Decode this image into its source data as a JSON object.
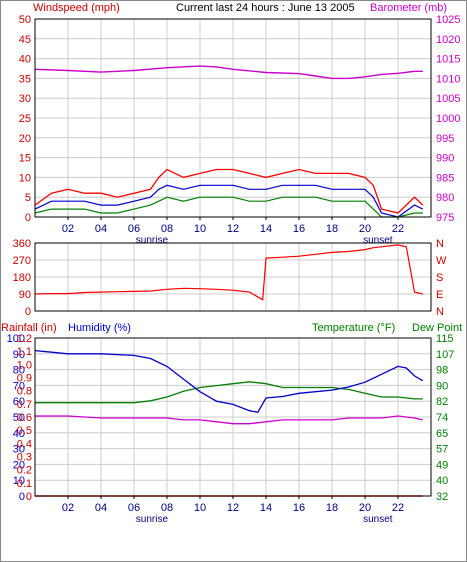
{
  "header": {
    "title": "Current last 24 hours : June 13 2005",
    "left_label": "Windspeed (mph)",
    "right_label": "Barometer (mb)"
  },
  "colors": {
    "red": "#ff0000",
    "blue": "#0000cc",
    "green": "#008000",
    "magenta": "#cc00cc",
    "grid": "#cccccc",
    "frame": "#000000"
  },
  "x_axis": {
    "tick_labels": [
      "02",
      "04",
      "06",
      "08",
      "10",
      "12",
      "14",
      "16",
      "18",
      "20",
      "22"
    ],
    "tick_hours": [
      2,
      4,
      6,
      8,
      10,
      12,
      14,
      16,
      18,
      20,
      22
    ],
    "sunrise_label": "sunrise",
    "sunset_label": "sunset",
    "sunrise_hour": 6.6,
    "sunset_hour": 20.9
  },
  "chart_data": [
    {
      "type": "line",
      "name": "wind-barometer",
      "ylabel_left": "Windspeed (mph)",
      "ylabel_right": "Barometer (mb)",
      "ylim_left": [
        0,
        50
      ],
      "ylim_right": [
        975,
        1025
      ],
      "yticks_left": [
        "0",
        "5",
        "10",
        "15",
        "20",
        "25",
        "30",
        "35",
        "40",
        "45",
        "50"
      ],
      "yticks_right": [
        "975",
        "980",
        "985",
        "990",
        "995",
        "1000",
        "1005",
        "1010",
        "1015",
        "1020",
        "1025"
      ],
      "grid": true,
      "barometer": {
        "x": [
          0,
          2,
          4,
          6,
          8,
          10,
          11,
          12,
          14,
          16,
          17,
          18,
          19,
          20,
          21,
          22,
          23,
          23.5
        ],
        "y": [
          1012.3,
          1012,
          1011.6,
          1012,
          1012.7,
          1013.1,
          1012.9,
          1012.3,
          1011.5,
          1011.2,
          1010.6,
          1010,
          1010,
          1010.4,
          1011,
          1011.3,
          1011.8,
          1011.8
        ]
      },
      "wind_gust": {
        "x": [
          0,
          1,
          2,
          3,
          4,
          5,
          6,
          7,
          7.5,
          8,
          9,
          10,
          11,
          12,
          13,
          14,
          15,
          16,
          17,
          18,
          19,
          20,
          20.5,
          21,
          22,
          23,
          23.5
        ],
        "y": [
          3,
          6,
          7,
          6,
          6,
          5,
          6,
          7,
          10,
          12,
          10,
          11,
          12,
          12,
          11,
          10,
          11,
          12,
          11,
          11,
          11,
          10,
          8,
          2,
          1,
          5,
          3
        ]
      },
      "wind_average": {
        "x": [
          0,
          1,
          2,
          3,
          4,
          5,
          6,
          7,
          7.5,
          8,
          9,
          10,
          11,
          12,
          13,
          14,
          15,
          16,
          17,
          18,
          19,
          20,
          20.5,
          21,
          22,
          23,
          23.5
        ],
        "y": [
          2,
          4,
          4,
          4,
          3,
          3,
          4,
          5,
          7,
          8,
          7,
          8,
          8,
          8,
          7,
          7,
          8,
          8,
          8,
          7,
          7,
          7,
          5,
          1,
          0,
          3,
          2
        ]
      },
      "wind_min": {
        "x": [
          0,
          1,
          2,
          3,
          4,
          5,
          6,
          7,
          7.5,
          8,
          9,
          10,
          11,
          12,
          13,
          14,
          15,
          16,
          17,
          18,
          19,
          20,
          20.5,
          21,
          22,
          23,
          23.5
        ],
        "y": [
          1,
          2,
          2,
          2,
          1,
          1,
          2,
          3,
          4,
          5,
          4,
          5,
          5,
          5,
          4,
          4,
          5,
          5,
          5,
          4,
          4,
          4,
          2,
          0,
          0,
          1,
          1
        ]
      }
    },
    {
      "type": "line",
      "name": "wind-direction",
      "ylim": [
        0,
        360
      ],
      "yticks_left": [
        "0",
        "90",
        "180",
        "270",
        "360"
      ],
      "yticks_right": [
        "N",
        "E",
        "S",
        "W",
        "N"
      ],
      "grid": true,
      "direction": {
        "x": [
          0,
          1,
          2,
          3,
          4,
          5,
          6,
          7,
          8,
          9,
          10,
          11,
          12,
          13,
          13.8,
          14,
          15,
          16,
          17,
          18,
          19,
          20,
          20.5,
          21,
          21.5,
          22,
          22.5,
          23,
          23.5
        ],
        "y": [
          90,
          92,
          92,
          98,
          100,
          102,
          104,
          106,
          115,
          120,
          118,
          115,
          110,
          100,
          60,
          280,
          285,
          290,
          300,
          310,
          315,
          325,
          335,
          340,
          345,
          350,
          340,
          100,
          90
        ]
      }
    },
    {
      "type": "line",
      "name": "rain-humidity-temperature",
      "ylabel_left": "Rainfall (in)",
      "ylabel_humidity": "Humidity (%)",
      "ylabel_right": "Temperature (°F)",
      "ylabel_dewpoint": "Dew Point",
      "ylim_humidity": [
        0,
        100
      ],
      "ylim_rain": [
        0,
        1.2
      ],
      "ylim_temperature": [
        32,
        115
      ],
      "yticks_humidity": [
        "0",
        "10",
        "20",
        "30",
        "40",
        "50",
        "60",
        "70",
        "80",
        "90",
        "100"
      ],
      "yticks_rain": [
        "0",
        "0.1",
        "0.2",
        "0.3",
        "0.4",
        "0.5",
        "0.6",
        "0.7",
        "0.8",
        "0.9",
        "1.0",
        "1.1",
        "1.2"
      ],
      "yticks_temperature": [
        "32",
        "40",
        "49",
        "57",
        "65",
        "74",
        "82",
        "90",
        "98",
        "107",
        "115"
      ],
      "grid": true,
      "humidity": {
        "x": [
          0,
          1,
          2,
          4,
          6,
          7,
          8,
          9,
          10,
          11,
          12,
          13,
          13.5,
          14,
          15,
          16,
          17,
          18,
          19,
          20,
          21,
          22,
          22.5,
          23,
          23.5
        ],
        "y": [
          92,
          91,
          90,
          90,
          89,
          87,
          82,
          74,
          66,
          60,
          58,
          54,
          53,
          62,
          63,
          65,
          66,
          67,
          69,
          72,
          77,
          82,
          81,
          76,
          73
        ]
      },
      "temperature": {
        "x": [
          0,
          2,
          4,
          6,
          7,
          8,
          9,
          10,
          11,
          12,
          13,
          14,
          15,
          16,
          17,
          18,
          19,
          20,
          21,
          22,
          23,
          23.5
        ],
        "y": [
          81,
          81,
          81,
          81,
          82,
          84,
          87,
          89,
          90,
          91,
          92,
          91,
          89,
          89,
          89,
          89,
          88,
          86,
          84,
          84,
          83,
          83
        ]
      },
      "dew_point": {
        "x": [
          0,
          2,
          4,
          6,
          8,
          9,
          10,
          11,
          12,
          13,
          14,
          15,
          16,
          17,
          18,
          19,
          20,
          21,
          22,
          23,
          23.5
        ],
        "y": [
          74,
          74,
          73,
          73,
          73,
          72,
          72,
          71,
          70,
          70,
          71,
          72,
          72,
          72,
          72,
          73,
          73,
          73,
          74,
          73,
          72
        ]
      },
      "rainfall": {
        "x": [
          0,
          23.5
        ],
        "y": [
          0,
          0
        ]
      }
    }
  ]
}
